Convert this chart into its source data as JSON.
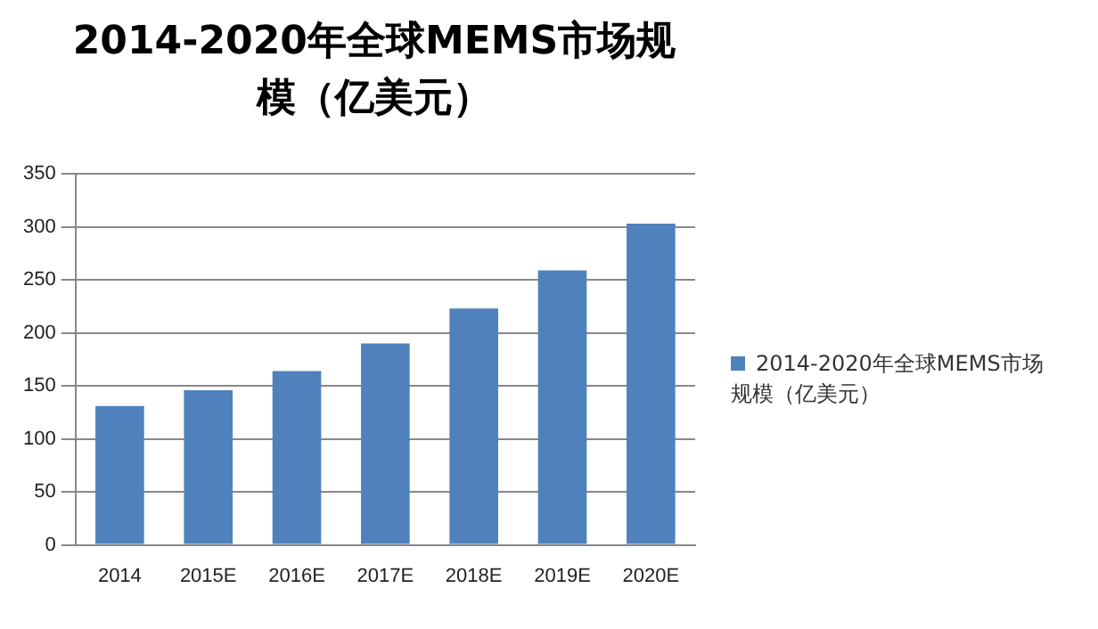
{
  "chart_data": {
    "type": "bar",
    "title": "2014-2020年全球MEMS市场规模（亿美元）",
    "categories": [
      "2014",
      "2015E",
      "2016E",
      "2017E",
      "2018E",
      "2019E",
      "2020E"
    ],
    "series": [
      {
        "name": "2014-2020年全球MEMS市场规模（亿美元）",
        "color": "#4f81bd",
        "values": [
          131,
          146,
          164,
          190,
          223,
          259,
          303
        ]
      }
    ],
    "ylim": [
      0,
      350
    ],
    "yticks": [
      0,
      50,
      100,
      150,
      200,
      250,
      300,
      350
    ],
    "grid": "y",
    "legend": "right"
  }
}
